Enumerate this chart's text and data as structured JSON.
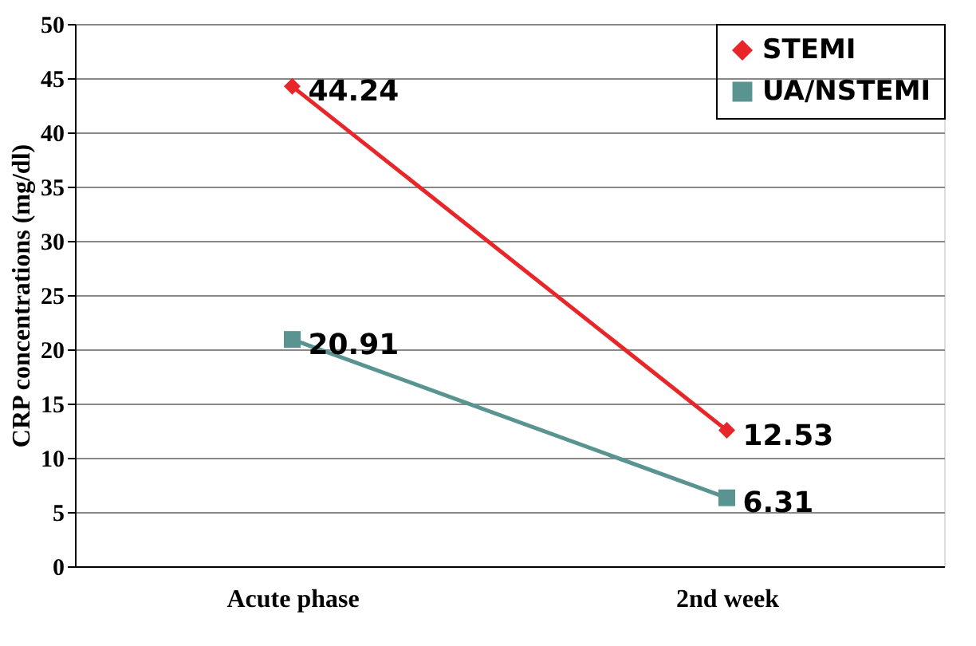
{
  "chart_data": {
    "type": "line",
    "ylabel": "CRP concentrations (mg/dl)",
    "categories": [
      "Acute phase",
      "2nd week"
    ],
    "series": [
      {
        "name": "STEMI",
        "color": "#e8262a",
        "values": [
          44.24,
          12.53
        ],
        "marker": "diamond"
      },
      {
        "name": "UA/NSTEMI",
        "color": "#5a9490",
        "values": [
          20.91,
          6.31
        ],
        "marker": "square"
      }
    ],
    "ylim": [
      0,
      50
    ],
    "yticks": [
      0,
      5,
      10,
      15,
      20,
      25,
      30,
      35,
      40,
      45,
      50
    ],
    "grid": "y",
    "legend": "top right",
    "data_labels": true,
    "line_style": "solid"
  }
}
